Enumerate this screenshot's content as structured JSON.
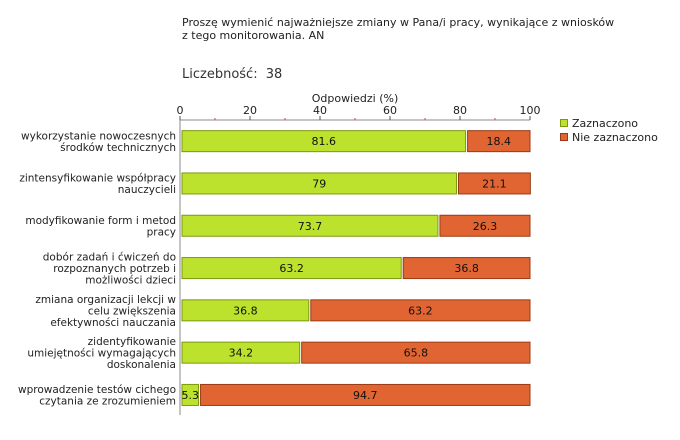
{
  "question": "Proszę wymienić najważniejsze zmiany w Pana/i pracy, wynikające z wniosków z tego monitorowania. AN",
  "count_label": "Liczebność:",
  "count_value": "38",
  "colors": {
    "zaznaczono": "#bde22e",
    "zaznaczono_border": "#7a9a10",
    "nie_zaznaczono": "#e06533",
    "nie_zaznaczono_border": "#9a3a14"
  },
  "chart_data": {
    "type": "bar",
    "orientation": "horizontal",
    "stacked": true,
    "xlabel": "Odpowiedzi (%)",
    "xlim": [
      0,
      100
    ],
    "xticks": [
      0,
      20,
      40,
      60,
      80,
      100
    ],
    "xtick_labels": [
      "0",
      "20",
      "40",
      "60",
      "80",
      "100"
    ],
    "legend_position": "right",
    "categories": [
      [
        "wykorzystanie nowoczesnych",
        "środków technicznych"
      ],
      [
        "zintensyfikowanie współpracy",
        "nauczycieli"
      ],
      [
        "modyfikowanie form i metod",
        "pracy"
      ],
      [
        "dobór zadań i ćwiczeń do",
        "rozpoznanych potrzeb i",
        "możliwości dzieci"
      ],
      [
        "zmiana organizacji lekcji w",
        "celu zwiększenia",
        "efektywności nauczania"
      ],
      [
        "zidentyfikowanie",
        "umiejętności wymagających",
        "doskonalenia"
      ],
      [
        "wprowadzenie testów cichego",
        "czytania ze zrozumieniem"
      ]
    ],
    "series": [
      {
        "name": "Zaznaczono",
        "values": [
          81.6,
          79,
          73.7,
          63.2,
          36.8,
          34.2,
          5.3
        ]
      },
      {
        "name": "Nie zaznaczono",
        "values": [
          18.4,
          21.1,
          26.3,
          36.8,
          63.2,
          65.8,
          94.7
        ]
      }
    ]
  }
}
